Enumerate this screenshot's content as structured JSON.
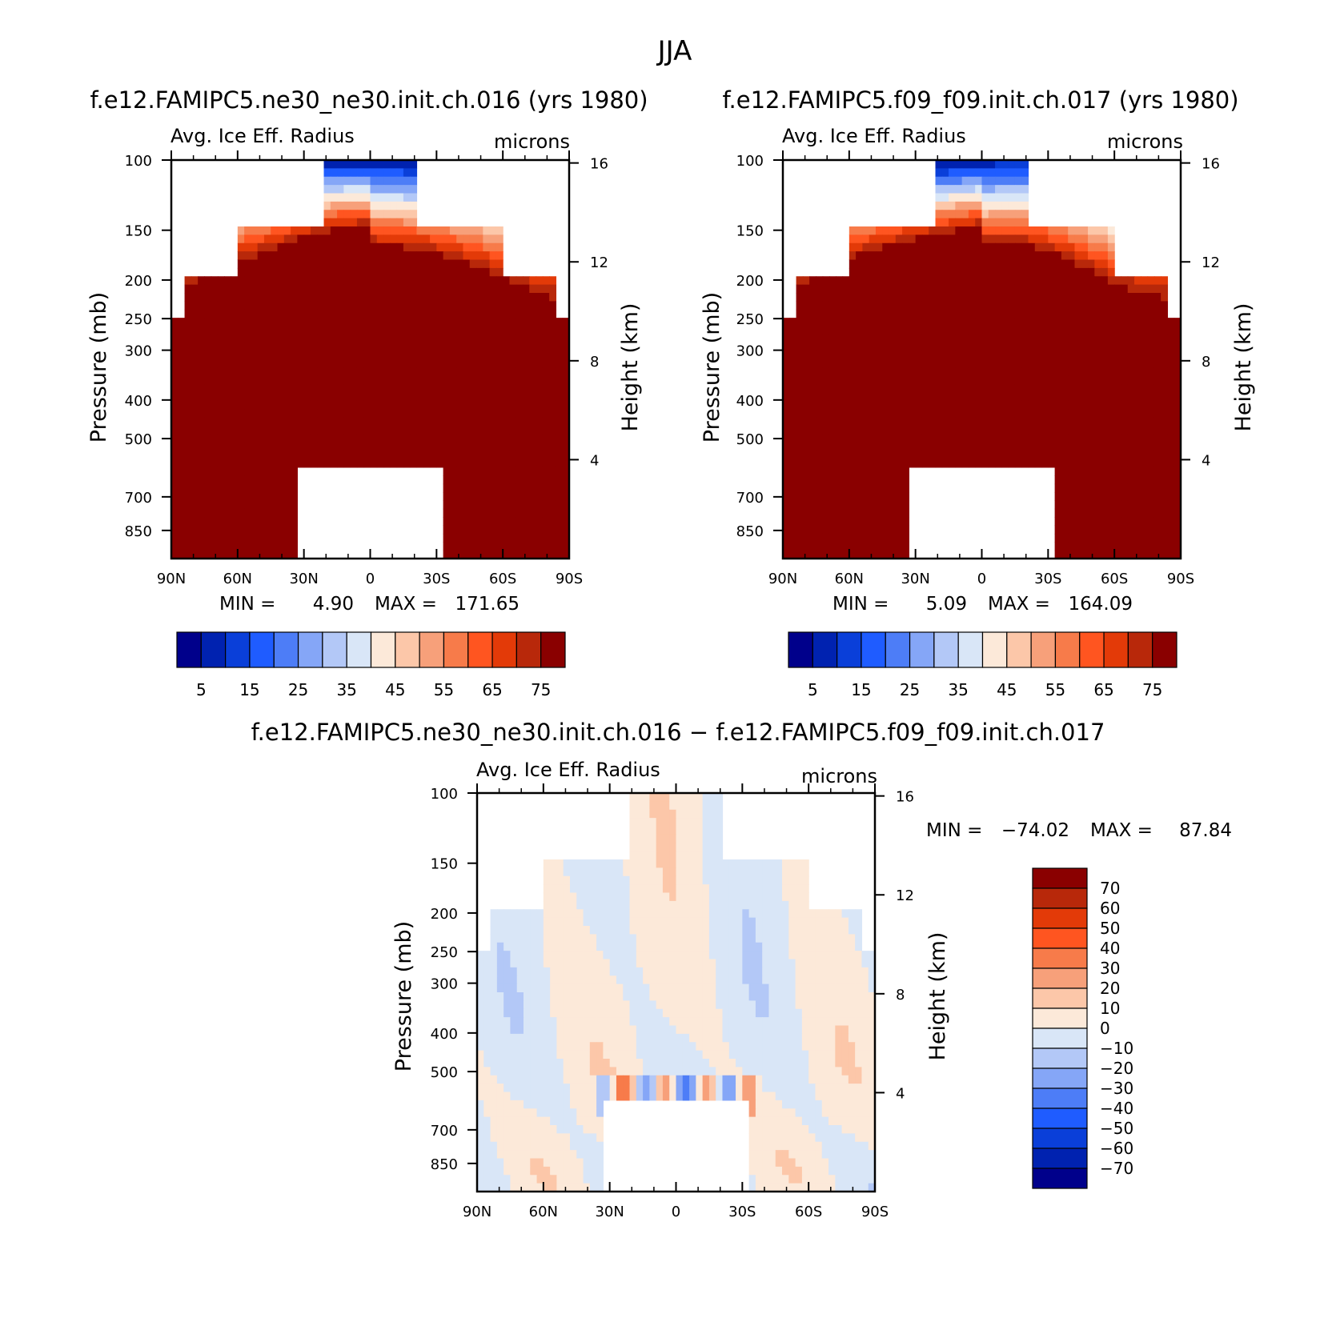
{
  "figure": {
    "title": "JJA",
    "colors": {
      "abs_levels": [
        "#00008b",
        "#0022b0",
        "#0a3fd9",
        "#1f5cff",
        "#4d7df7",
        "#85a6f7",
        "#b3c8f7",
        "#d9e6f7",
        "#fce9d9",
        "#fcc7a9",
        "#f7a07a",
        "#f77b4a",
        "#ff5520",
        "#e33a08",
        "#b8280a",
        "#8a0000"
      ],
      "diff_levels": [
        "#00008b",
        "#0022b0",
        "#0a3fd9",
        "#1f5cff",
        "#4d7df7",
        "#85a6f7",
        "#b3c8f7",
        "#d9e6f7",
        "#fce9d9",
        "#fcc7a9",
        "#f7a07a",
        "#f77b4a",
        "#ff5520",
        "#e33a08",
        "#b8280a",
        "#8a0000"
      ]
    }
  },
  "chart_data": [
    {
      "type": "heatmap",
      "title": "f.e12.FAMIPC5.ne30_ne30.init.ch.016 (yrs 1980)",
      "variable": "Avg. Ice Eff. Radius",
      "units": "microns",
      "ylabel": "Pressure (mb)",
      "y2label": "Height (km)",
      "x_ticks": [
        "90N",
        "60N",
        "30N",
        "0",
        "30S",
        "60S",
        "90S"
      ],
      "y_ticks": [
        100,
        150,
        200,
        250,
        300,
        400,
        500,
        700,
        850
      ],
      "y2_ticks": [
        16,
        12,
        8,
        4
      ],
      "xlim": [
        90,
        -90
      ],
      "ylim": [
        100,
        1000
      ],
      "stats": {
        "min_label": "MIN =",
        "min": "4.90",
        "max_label": "MAX =",
        "max": "171.65"
      },
      "colorbar_levels": [
        5,
        10,
        15,
        20,
        25,
        30,
        35,
        40,
        45,
        50,
        55,
        60,
        65,
        70,
        75
      ],
      "colorbar_labels": [
        "5",
        "15",
        "25",
        "35",
        "45",
        "55",
        "65",
        "75"
      ],
      "colorbar_orientation": "horizontal"
    },
    {
      "type": "heatmap",
      "title": "f.e12.FAMIPC5.f09_f09.init.ch.017 (yrs 1980)",
      "variable": "Avg. Ice Eff. Radius",
      "units": "microns",
      "ylabel": "Pressure (mb)",
      "y2label": "Height (km)",
      "x_ticks": [
        "90N",
        "60N",
        "30N",
        "0",
        "30S",
        "60S",
        "90S"
      ],
      "y_ticks": [
        100,
        150,
        200,
        250,
        300,
        400,
        500,
        700,
        850
      ],
      "y2_ticks": [
        16,
        12,
        8,
        4
      ],
      "xlim": [
        90,
        -90
      ],
      "ylim": [
        100,
        1000
      ],
      "stats": {
        "min_label": "MIN =",
        "min": "5.09",
        "max_label": "MAX =",
        "max": "164.09"
      },
      "colorbar_levels": [
        5,
        10,
        15,
        20,
        25,
        30,
        35,
        40,
        45,
        50,
        55,
        60,
        65,
        70,
        75
      ],
      "colorbar_labels": [
        "5",
        "15",
        "25",
        "35",
        "45",
        "55",
        "65",
        "75"
      ],
      "colorbar_orientation": "horizontal"
    },
    {
      "type": "heatmap",
      "title": "f.e12.FAMIPC5.ne30_ne30.init.ch.016 − f.e12.FAMIPC5.f09_f09.init.ch.017",
      "variable": "Avg. Ice Eff. Radius",
      "units": "microns",
      "ylabel": "Pressure (mb)",
      "y2label": "Height (km)",
      "x_ticks": [
        "90N",
        "60N",
        "30N",
        "0",
        "30S",
        "60S",
        "90S"
      ],
      "y_ticks": [
        100,
        150,
        200,
        250,
        300,
        400,
        500,
        700,
        850
      ],
      "y2_ticks": [
        16,
        12,
        8,
        4
      ],
      "xlim": [
        90,
        -90
      ],
      "ylim": [
        100,
        1000
      ],
      "stats": {
        "min_label": "MIN =",
        "min": "−74.02",
        "max_label": "MAX =",
        "max": "87.84"
      },
      "colorbar_levels": [
        -70,
        -60,
        -50,
        -40,
        -30,
        -20,
        -10,
        0,
        10,
        20,
        30,
        40,
        50,
        60,
        70
      ],
      "colorbar_labels": [
        "70",
        "60",
        "50",
        "40",
        "30",
        "20",
        "10",
        "0",
        "−10",
        "−20",
        "−30",
        "−40",
        "−50",
        "−60",
        "−70"
      ],
      "colorbar_orientation": "vertical"
    }
  ]
}
